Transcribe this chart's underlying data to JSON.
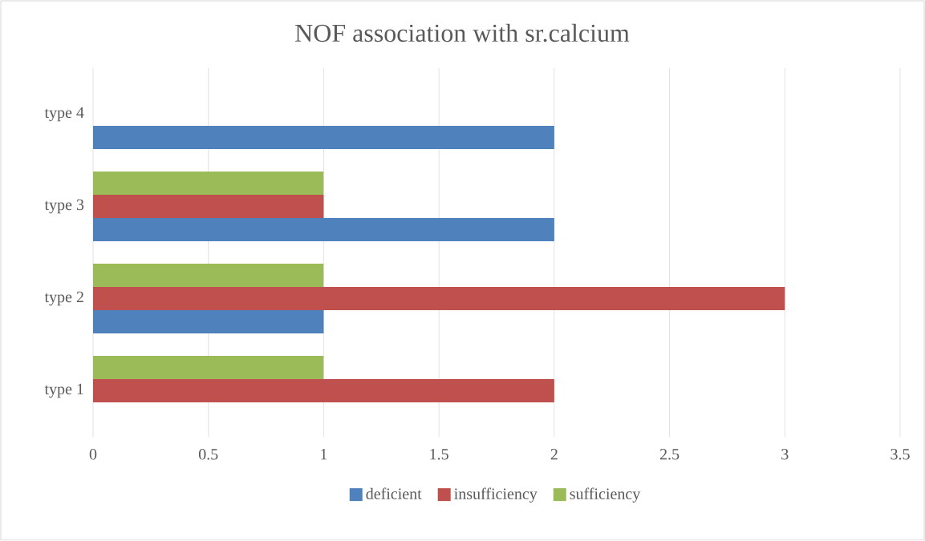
{
  "chart_data": {
    "type": "bar",
    "orientation": "horizontal",
    "title": "NOF association with sr.calcium",
    "categories": [
      "type 4",
      "type 3",
      "type 2",
      "type 1"
    ],
    "series": [
      {
        "name": "deficient",
        "color": "#4f81bd",
        "values": [
          2,
          2,
          1,
          null
        ]
      },
      {
        "name": "insufficiency",
        "color": "#c0504d",
        "values": [
          null,
          1,
          3,
          2
        ]
      },
      {
        "name": "sufficiency",
        "color": "#9bbb59",
        "values": [
          null,
          1,
          1,
          1
        ]
      }
    ],
    "xlim": [
      0,
      3.5
    ],
    "xticks": [
      0,
      0.5,
      1,
      1.5,
      2,
      2.5,
      3,
      3.5
    ],
    "grid": "x",
    "legend": "bottom"
  }
}
